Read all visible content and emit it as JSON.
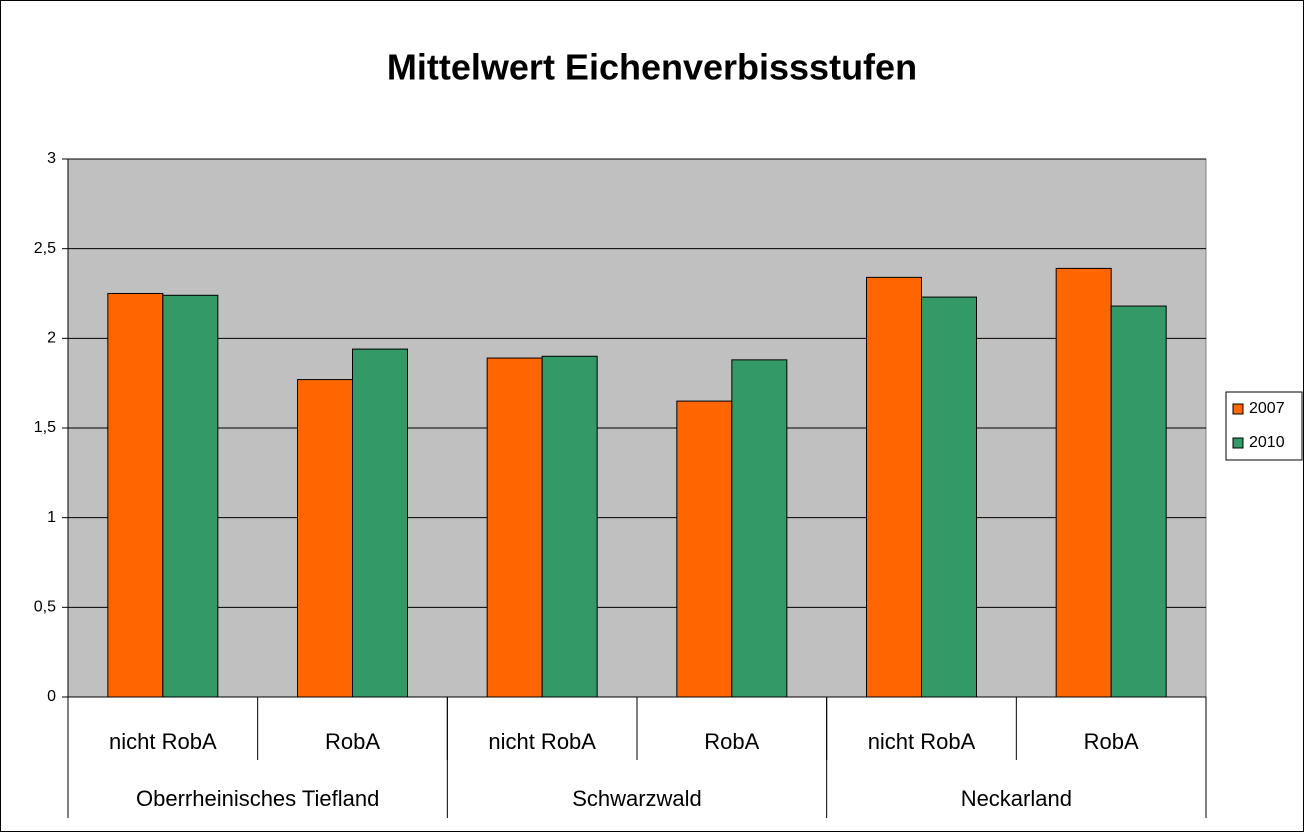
{
  "chart_data": {
    "type": "bar",
    "title": "Mittelwert Eichenverbissstufen",
    "categories": [
      "nicht RobA",
      "RobA",
      "nicht RobA",
      "RobA",
      "nicht RobA",
      "RobA"
    ],
    "category_groups": [
      "Oberrheinisches Tiefland",
      "Schwarzwald",
      "Neckarland"
    ],
    "series": [
      {
        "name": "2007",
        "color": "#FF6600",
        "values": [
          2.25,
          1.77,
          1.89,
          1.65,
          2.34,
          2.39
        ]
      },
      {
        "name": "2010",
        "color": "#339966",
        "values": [
          2.24,
          1.94,
          1.9,
          1.88,
          2.23,
          2.18
        ]
      }
    ],
    "ylim": [
      0,
      3
    ],
    "yticks": [
      0,
      {
        "value": 0.5,
        "label": "0,5"
      },
      1,
      {
        "value": 1.5,
        "label": "1,5"
      },
      2,
      {
        "value": 2.5,
        "label": "2,5"
      },
      3
    ],
    "grid": true,
    "legend": "right",
    "plot_background": "#C0C0C0"
  }
}
